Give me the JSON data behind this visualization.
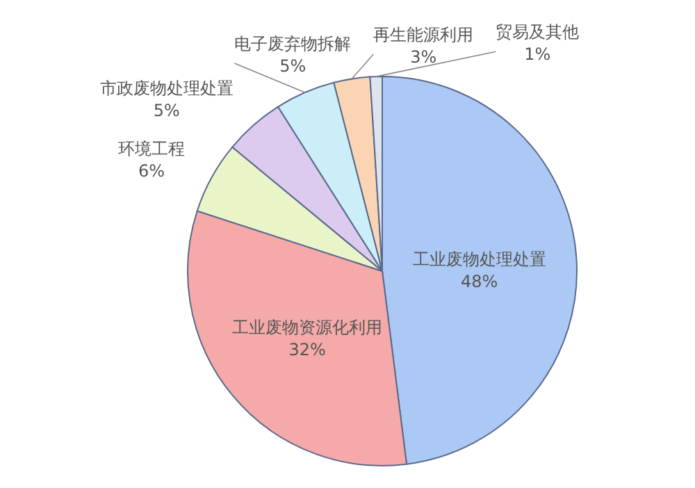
{
  "chart_data": {
    "type": "pie",
    "categories": [
      "工业废物处理处置",
      "工业废物资源化利用",
      "环境工程",
      "市政废物处理处置",
      "电子废弃物拆解",
      "再生能源利用",
      "贸易及其他"
    ],
    "values": [
      48,
      32,
      6,
      5,
      5,
      3,
      1
    ],
    "value_labels": [
      "48%",
      "32%",
      "6%",
      "5%",
      "5%",
      "3%",
      "1%"
    ],
    "colors": [
      "#abc9f4",
      "#f5a9a9",
      "#e9f5c9",
      "#dccbee",
      "#cbeef9",
      "#fbd4b4",
      "#dde4ee"
    ],
    "legend": false
  }
}
